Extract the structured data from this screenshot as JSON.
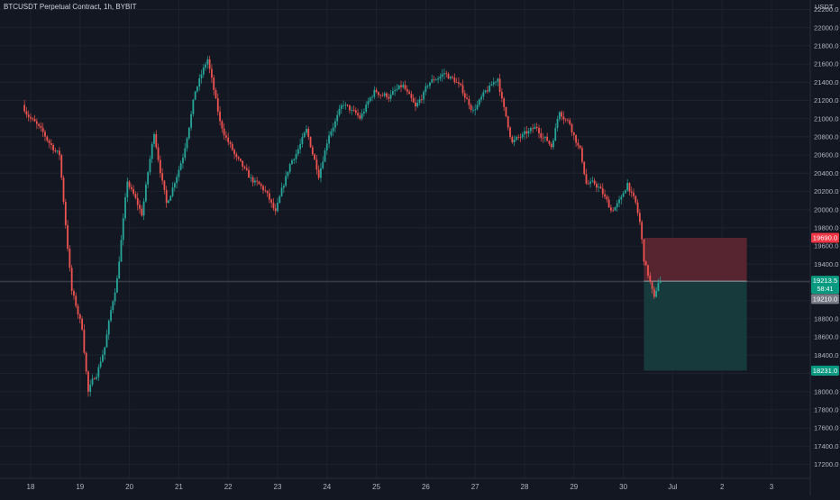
{
  "header": {
    "title": "BTCUSDT Perpetual Contract, 1h, BYBIT",
    "currency": "USDT"
  },
  "colors": {
    "background": "#131722",
    "grid": "#1e222d",
    "text": "#b2b5be",
    "up": "#26a69a",
    "down": "#ef5350",
    "stop_zone": "#5b2631",
    "target_zone": "#173d3e",
    "entry_line": "#9aa0ab",
    "stop_badge": "#f23645",
    "entry_badge": "#089981",
    "last_price_badge": "#787b86",
    "target_badge": "#089981"
  },
  "price_axis": {
    "ticks": [
      "22200.0",
      "22000.0",
      "21800.0",
      "21600.0",
      "21400.0",
      "21200.0",
      "21000.0",
      "20800.0",
      "20600.0",
      "20400.0",
      "20200.0",
      "20000.0",
      "19800.0",
      "19600.0",
      "19400.0",
      "19200.0",
      "19000.0",
      "18800.0",
      "18600.0",
      "18400.0",
      "18200.0",
      "18000.0",
      "17800.0",
      "17600.0",
      "17400.0",
      "17200.0"
    ]
  },
  "time_axis": {
    "ticks": [
      "18",
      "19",
      "20",
      "21",
      "22",
      "23",
      "24",
      "25",
      "26",
      "27",
      "28",
      "29",
      "30",
      "Jul",
      "2",
      "3"
    ]
  },
  "price_labels": {
    "stop": "19690.0",
    "entry": "19213.5",
    "countdown": "58:41",
    "last_price": "19210.0",
    "target": "18231.0"
  },
  "chart_data": {
    "type": "candlestick",
    "timeframe": "1h",
    "ylim": [
      17150,
      22300
    ],
    "x_range_days": [
      "Jun 18",
      "Jul 3"
    ],
    "position": {
      "side": "short",
      "entry": 19213.5,
      "stop_loss": 19690.0,
      "take_profit": 18231.0,
      "start": "Jun 30 ~10:00",
      "end": "Jul 2 ~12:00"
    },
    "price_anchors": [
      {
        "t": "Jun 17 21:00",
        "price": 21150
      },
      {
        "t": "Jun 18 06:00",
        "price": 20850
      },
      {
        "t": "Jun 18 15:00",
        "price": 20600
      },
      {
        "t": "Jun 18 21:00",
        "price": 19100
      },
      {
        "t": "Jun 19 02:00",
        "price": 18700
      },
      {
        "t": "Jun 19 05:00",
        "price": 18000
      },
      {
        "t": "Jun 19 09:00",
        "price": 18200
      },
      {
        "t": "Jun 19 13:00",
        "price": 18500
      },
      {
        "t": "Jun 19 19:00",
        "price": 19250
      },
      {
        "t": "Jun 20 00:00",
        "price": 20300
      },
      {
        "t": "Jun 20 07:00",
        "price": 19950
      },
      {
        "t": "Jun 20 13:00",
        "price": 20850
      },
      {
        "t": "Jun 20 19:00",
        "price": 20050
      },
      {
        "t": "Jun 21 03:00",
        "price": 20600
      },
      {
        "t": "Jun 21 09:00",
        "price": 21300
      },
      {
        "t": "Jun 21 15:00",
        "price": 21650
      },
      {
        "t": "Jun 21 21:00",
        "price": 20950
      },
      {
        "t": "Jun 22 05:00",
        "price": 20550
      },
      {
        "t": "Jun 22 11:00",
        "price": 20350
      },
      {
        "t": "Jun 22 19:00",
        "price": 20200
      },
      {
        "t": "Jun 23 00:00",
        "price": 19950
      },
      {
        "t": "Jun 23 07:00",
        "price": 20500
      },
      {
        "t": "Jun 23 15:00",
        "price": 20850
      },
      {
        "t": "Jun 23 21:00",
        "price": 20400
      },
      {
        "t": "Jun 24 02:00",
        "price": 20850
      },
      {
        "t": "Jun 24 09:00",
        "price": 21150
      },
      {
        "t": "Jun 24 17:00",
        "price": 21000
      },
      {
        "t": "Jun 25 00:00",
        "price": 21300
      },
      {
        "t": "Jun 25 07:00",
        "price": 21250
      },
      {
        "t": "Jun 25 14:00",
        "price": 21350
      },
      {
        "t": "Jun 25 20:00",
        "price": 21100
      },
      {
        "t": "Jun 26 03:00",
        "price": 21400
      },
      {
        "t": "Jun 26 10:00",
        "price": 21500
      },
      {
        "t": "Jun 26 16:00",
        "price": 21400
      },
      {
        "t": "Jun 27 00:00",
        "price": 21100
      },
      {
        "t": "Jun 27 07:00",
        "price": 21300
      },
      {
        "t": "Jun 27 12:00",
        "price": 21450
      },
      {
        "t": "Jun 27 15:00",
        "price": 21100
      },
      {
        "t": "Jun 27 19:00",
        "price": 20750
      },
      {
        "t": "Jun 28 00:00",
        "price": 20800
      },
      {
        "t": "Jun 28 07:00",
        "price": 20900
      },
      {
        "t": "Jun 28 14:00",
        "price": 20700
      },
      {
        "t": "Jun 28 18:00",
        "price": 21100
      },
      {
        "t": "Jun 28 23:00",
        "price": 20950
      },
      {
        "t": "Jun 29 04:00",
        "price": 20650
      },
      {
        "t": "Jun 29 07:00",
        "price": 20300
      },
      {
        "t": "Jun 29 13:00",
        "price": 20250
      },
      {
        "t": "Jun 29 19:00",
        "price": 20000
      },
      {
        "t": "Jun 30 00:00",
        "price": 20100
      },
      {
        "t": "Jun 30 03:00",
        "price": 20300
      },
      {
        "t": "Jun 30 07:00",
        "price": 20050
      },
      {
        "t": "Jun 30 09:00",
        "price": 19850
      },
      {
        "t": "Jun 30 11:00",
        "price": 19450
      },
      {
        "t": "Jun 30 14:00",
        "price": 19200
      },
      {
        "t": "Jun 30 16:00",
        "price": 19000
      },
      {
        "t": "Jun 30 18:00",
        "price": 19210
      }
    ]
  }
}
